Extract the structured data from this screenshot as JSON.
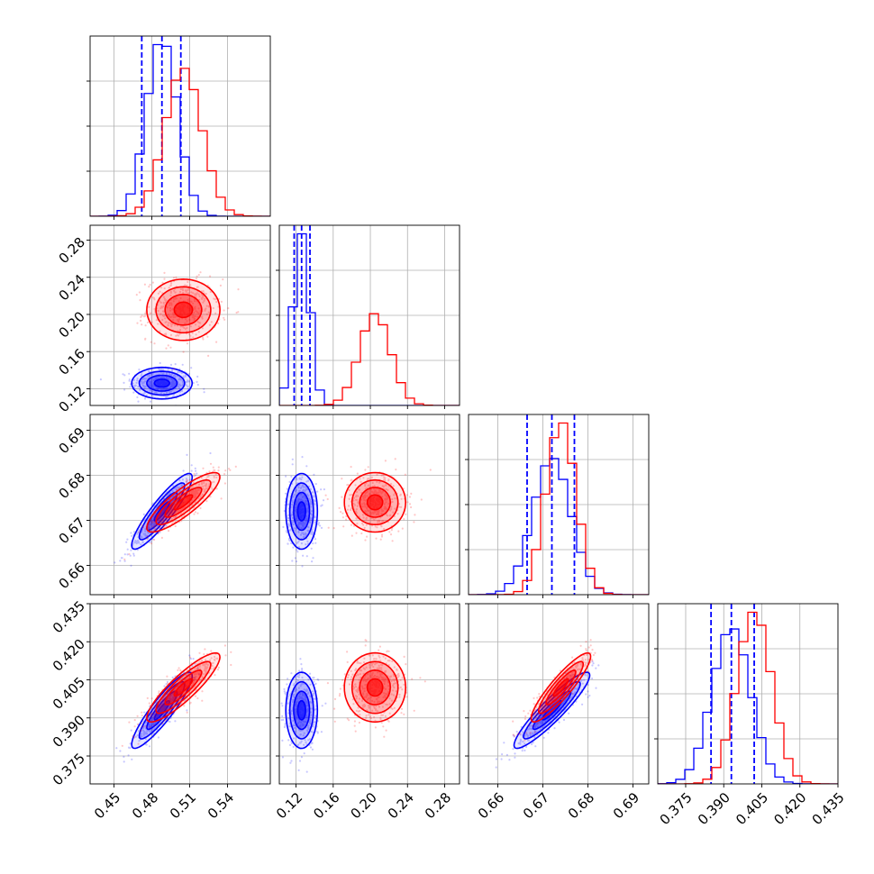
{
  "chart_data": {
    "type": "corner",
    "grid": true,
    "parameters": [
      {
        "ticks": [
          0.45,
          0.48,
          0.51,
          0.54
        ],
        "tick_labels": [
          "0.45",
          "0.48",
          "0.51",
          "0.54"
        ],
        "range": [
          0.431,
          0.574
        ]
      },
      {
        "ticks": [
          0.12,
          0.16,
          0.2,
          0.24,
          0.28
        ],
        "tick_labels": [
          "0.12",
          "0.16",
          "0.20",
          "0.24",
          "0.28"
        ],
        "range": [
          0.102,
          0.296
        ]
      },
      {
        "ticks": [
          0.66,
          0.67,
          0.68,
          0.69
        ],
        "tick_labels": [
          "0.66",
          "0.67",
          "0.68",
          "0.69"
        ],
        "range": [
          0.6535,
          0.6935
        ]
      },
      {
        "ticks": [
          0.375,
          0.39,
          0.405,
          0.42,
          0.435
        ],
        "tick_labels": [
          "0.375",
          "0.390",
          "0.405",
          "0.420",
          "0.435"
        ],
        "range": [
          0.364,
          0.435
        ]
      }
    ],
    "series": [
      {
        "color": "#0000ff",
        "mean": [
          0.488,
          0.126,
          0.672,
          0.393
        ],
        "sd": [
          0.012,
          0.0085,
          0.0042,
          0.0075
        ],
        "quantiles": [
          [
            0.472,
            0.488,
            0.503
          ],
          [
            0.118,
            0.126,
            0.135
          ],
          [
            0.6665,
            0.672,
            0.677
          ],
          [
            0.385,
            0.393,
            0.402
          ]
        ],
        "corr": [
          [
            1,
            0,
            0.9,
            0.9
          ],
          [
            0,
            1,
            0,
            0
          ],
          [
            0.9,
            0,
            1,
            0.92
          ],
          [
            0.9,
            0,
            0.92,
            1
          ]
        ]
      },
      {
        "color": "#ff0000",
        "mean": [
          0.505,
          0.205,
          0.674,
          0.402
        ],
        "sd": [
          0.0145,
          0.0165,
          0.0033,
          0.0068
        ],
        "quantiles": [],
        "corr": [
          [
            1,
            0,
            0.85,
            0.88
          ],
          [
            0,
            1,
            0,
            0
          ],
          [
            0.85,
            0,
            1,
            0.9
          ],
          [
            0.88,
            0,
            0.9,
            1
          ]
        ]
      }
    ]
  }
}
